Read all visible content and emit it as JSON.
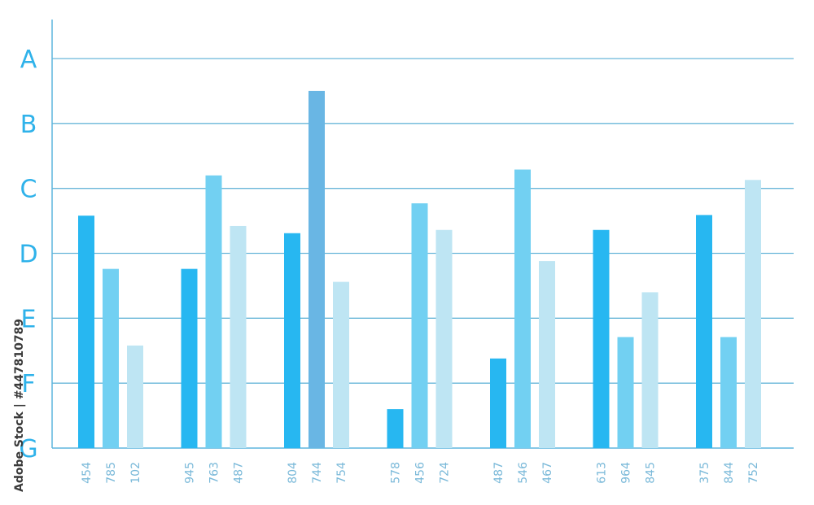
{
  "colors": {
    "axis": "#5fb6dd",
    "grid": "#6ab7d9",
    "label": "#2fb2ea",
    "tick_label": "#7ab9d9",
    "series": [
      "#27b7f1",
      "#72d0f2",
      "#bee5f3"
    ],
    "highlight": "#69b6e4"
  },
  "chart_data": {
    "type": "bar",
    "title": "",
    "xlabel": "",
    "ylabel": "",
    "y_tick_labels": [
      "A",
      "B",
      "C",
      "D",
      "E",
      "F",
      "G"
    ],
    "ylim": [
      0,
      6
    ],
    "grid": true,
    "legend": "none",
    "groups": [
      {
        "labels": [
          "454",
          "785",
          "102"
        ],
        "values": [
          3.58,
          2.76,
          1.58
        ]
      },
      {
        "labels": [
          "945",
          "763",
          "487"
        ],
        "values": [
          2.76,
          4.2,
          3.42
        ]
      },
      {
        "labels": [
          "804",
          "744",
          "754"
        ],
        "values": [
          3.31,
          5.5,
          2.56
        ]
      },
      {
        "labels": [
          "578",
          "456",
          "724"
        ],
        "values": [
          0.6,
          3.77,
          3.36
        ]
      },
      {
        "labels": [
          "487",
          "546",
          "467"
        ],
        "values": [
          1.38,
          4.29,
          2.88
        ]
      },
      {
        "labels": [
          "613",
          "964",
          "845"
        ],
        "values": [
          3.36,
          1.71,
          2.4
        ]
      },
      {
        "labels": [
          "375",
          "844",
          "752"
        ],
        "values": [
          3.59,
          1.71,
          4.13
        ]
      }
    ],
    "highlighted_bar": {
      "group": 2,
      "index": 1
    }
  },
  "watermark": {
    "text": "Adobe Stock | #447810789"
  }
}
